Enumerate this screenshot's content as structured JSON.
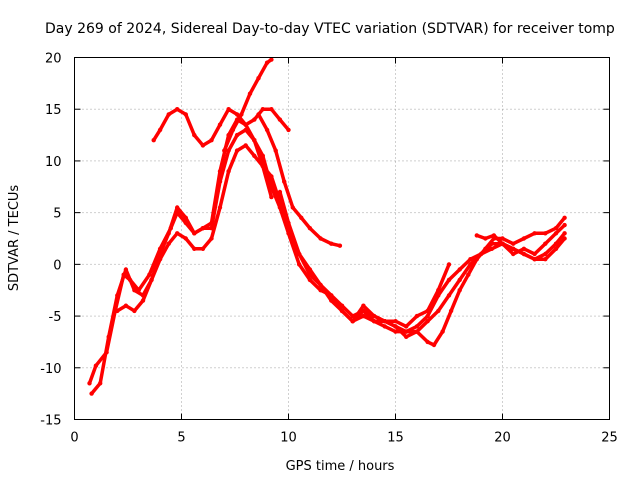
{
  "chart_data": {
    "type": "scatter",
    "title": "Day 269 of 2024, Sidereal Day-to-day VTEC variation (SDTVAR) for receiver tomp",
    "xlabel": "GPS time / hours",
    "ylabel": "SDTVAR / TECUs",
    "xlim": [
      0,
      25
    ],
    "ylim": [
      -15,
      20
    ],
    "xticks": [
      "0",
      "5",
      "10",
      "15",
      "20",
      "25"
    ],
    "yticks": [
      "-15",
      "-10",
      "-5",
      "0",
      "5",
      "10",
      "15",
      "20"
    ],
    "grid": true,
    "legend": "none",
    "color": "#ff0000",
    "series": [
      {
        "points": [
          [
            0.7,
            -11.5
          ],
          [
            1.0,
            -9.8
          ],
          [
            1.5,
            -8.5
          ],
          [
            1.9,
            -4.5
          ],
          [
            2.3,
            -1.0
          ],
          [
            2.6,
            -1.5
          ],
          [
            3.0,
            -2.5
          ],
          [
            3.5,
            -1.0
          ],
          [
            4.0,
            1.5
          ],
          [
            4.5,
            3.5
          ],
          [
            4.8,
            5.0
          ],
          [
            5.2,
            4.0
          ],
          [
            5.6,
            3.0
          ],
          [
            6.0,
            3.5
          ],
          [
            6.4,
            3.5
          ],
          [
            6.8,
            8.0
          ],
          [
            7.2,
            11.0
          ],
          [
            7.6,
            12.5
          ],
          [
            8.0,
            13.0
          ],
          [
            8.4,
            12.0
          ],
          [
            8.8,
            10.5
          ],
          [
            9.2,
            7.5
          ],
          [
            9.6,
            5.5
          ],
          [
            10.0,
            3.0
          ],
          [
            10.5,
            0.0
          ],
          [
            11.0,
            -1.5
          ],
          [
            11.5,
            -2.5
          ],
          [
            12.0,
            -3.0
          ],
          [
            12.5,
            -4.5
          ],
          [
            13.0,
            -5.5
          ],
          [
            13.5,
            -5.0
          ],
          [
            14.0,
            -5.5
          ],
          [
            14.5,
            -5.5
          ],
          [
            15.0,
            -6.0
          ],
          [
            15.5,
            -6.5
          ],
          [
            16.0,
            -6.0
          ],
          [
            16.5,
            -5.0
          ],
          [
            17.0,
            -3.0
          ],
          [
            17.5,
            -1.5
          ],
          [
            18.0,
            -0.5
          ],
          [
            18.5,
            0.5
          ],
          [
            19.0,
            1.0
          ],
          [
            19.5,
            2.0
          ],
          [
            20.0,
            2.0
          ],
          [
            20.5,
            1.5
          ],
          [
            21.0,
            1.0
          ],
          [
            21.5,
            0.5
          ],
          [
            22.0,
            1.0
          ],
          [
            22.5,
            2.0
          ],
          [
            22.9,
            3.0
          ]
        ]
      },
      {
        "points": [
          [
            0.8,
            -12.5
          ],
          [
            1.2,
            -11.5
          ],
          [
            1.6,
            -7.0
          ],
          [
            2.0,
            -3.0
          ],
          [
            2.4,
            -0.5
          ],
          [
            2.8,
            -2.5
          ],
          [
            3.2,
            -3.0
          ],
          [
            3.6,
            -1.5
          ],
          [
            4.0,
            0.5
          ],
          [
            4.4,
            2.0
          ],
          [
            4.8,
            3.0
          ],
          [
            5.2,
            2.5
          ],
          [
            5.6,
            1.5
          ],
          [
            6.0,
            1.5
          ],
          [
            6.4,
            2.5
          ],
          [
            6.8,
            5.5
          ],
          [
            7.2,
            9.0
          ],
          [
            7.6,
            11.0
          ],
          [
            8.0,
            11.5
          ],
          [
            8.4,
            10.5
          ],
          [
            8.8,
            9.5
          ],
          [
            9.2,
            8.5
          ],
          [
            9.6,
            6.0
          ],
          [
            10.0,
            3.5
          ],
          [
            10.5,
            1.0
          ],
          [
            11.0,
            -0.5
          ],
          [
            11.5,
            -2.0
          ],
          [
            12.0,
            -3.0
          ],
          [
            12.5,
            -4.0
          ],
          [
            13.0,
            -5.0
          ],
          [
            13.5,
            -4.5
          ],
          [
            14.0,
            -5.0
          ],
          [
            14.5,
            -5.5
          ],
          [
            15.0,
            -6.0
          ],
          [
            15.5,
            -7.0
          ],
          [
            16.0,
            -6.5
          ],
          [
            16.5,
            -5.5
          ],
          [
            17.0,
            -4.5
          ],
          [
            17.5,
            -3.0
          ],
          [
            18.0,
            -1.5
          ],
          [
            18.5,
            0.0
          ],
          [
            19.0,
            1.0
          ],
          [
            19.5,
            1.5
          ],
          [
            20.0,
            2.0
          ],
          [
            20.5,
            1.5
          ],
          [
            21.0,
            1.0
          ],
          [
            21.5,
            0.5
          ],
          [
            22.0,
            0.5
          ],
          [
            22.5,
            1.5
          ],
          [
            22.9,
            2.5
          ]
        ]
      },
      {
        "points": [
          [
            2.0,
            -4.5
          ],
          [
            2.4,
            -4.0
          ],
          [
            2.8,
            -4.5
          ],
          [
            3.2,
            -3.5
          ],
          [
            3.6,
            -1.5
          ],
          [
            4.0,
            1.0
          ],
          [
            4.4,
            3.0
          ],
          [
            4.8,
            5.5
          ],
          [
            5.2,
            4.5
          ],
          [
            5.6,
            3.0
          ],
          [
            6.0,
            3.5
          ],
          [
            6.4,
            4.0
          ],
          [
            6.8,
            9.0
          ],
          [
            7.2,
            12.5
          ],
          [
            7.6,
            14.0
          ],
          [
            8.0,
            13.5
          ],
          [
            8.4,
            12.0
          ],
          [
            8.8,
            9.5
          ],
          [
            9.2,
            6.5
          ]
        ]
      },
      {
        "points": [
          [
            3.7,
            12.0
          ],
          [
            4.0,
            13.0
          ],
          [
            4.4,
            14.5
          ],
          [
            4.8,
            15.0
          ],
          [
            5.2,
            14.5
          ],
          [
            5.6,
            12.5
          ],
          [
            6.0,
            11.5
          ],
          [
            6.4,
            12.0
          ],
          [
            6.8,
            13.5
          ],
          [
            7.2,
            15.0
          ],
          [
            7.6,
            14.5
          ],
          [
            8.0,
            13.5
          ],
          [
            8.4,
            14.0
          ],
          [
            8.8,
            15.0
          ],
          [
            9.2,
            15.0
          ],
          [
            9.6,
            14.0
          ],
          [
            10.0,
            13.0
          ]
        ]
      },
      {
        "points": [
          [
            7.0,
            11.0
          ],
          [
            7.4,
            13.0
          ],
          [
            7.8,
            14.5
          ],
          [
            8.2,
            16.5
          ],
          [
            8.6,
            18.0
          ],
          [
            9.0,
            19.5
          ],
          [
            9.2,
            19.8
          ]
        ]
      },
      {
        "points": [
          [
            8.6,
            14.5
          ],
          [
            9.0,
            13.0
          ],
          [
            9.4,
            11.0
          ],
          [
            9.8,
            8.0
          ],
          [
            10.2,
            5.5
          ],
          [
            10.6,
            4.5
          ],
          [
            11.0,
            3.5
          ],
          [
            11.5,
            2.5
          ],
          [
            12.0,
            2.0
          ],
          [
            12.4,
            1.8
          ]
        ]
      },
      {
        "points": [
          [
            9.6,
            7.0
          ],
          [
            10.0,
            4.0
          ],
          [
            10.5,
            1.0
          ],
          [
            11.0,
            -1.0
          ],
          [
            11.5,
            -2.0
          ],
          [
            12.0,
            -3.5
          ],
          [
            12.5,
            -4.5
          ],
          [
            13.0,
            -5.5
          ],
          [
            13.5,
            -4.0
          ],
          [
            14.0,
            -5.0
          ],
          [
            14.5,
            -5.5
          ],
          [
            15.0,
            -5.5
          ],
          [
            15.5,
            -6.0
          ],
          [
            16.0,
            -5.0
          ],
          [
            16.5,
            -4.5
          ],
          [
            17.0,
            -2.5
          ],
          [
            17.5,
            0.0
          ]
        ]
      },
      {
        "points": [
          [
            13.0,
            -5.5
          ],
          [
            13.5,
            -4.5
          ],
          [
            14.0,
            -5.5
          ],
          [
            14.5,
            -6.0
          ],
          [
            15.0,
            -6.5
          ],
          [
            15.5,
            -6.5
          ],
          [
            16.0,
            -6.5
          ],
          [
            16.5,
            -7.5
          ],
          [
            16.8,
            -7.8
          ],
          [
            17.2,
            -6.5
          ],
          [
            17.6,
            -4.5
          ],
          [
            18.0,
            -2.5
          ],
          [
            18.4,
            -1.0
          ],
          [
            18.8,
            0.5
          ],
          [
            19.2,
            1.5
          ],
          [
            19.6,
            2.5
          ],
          [
            20.0,
            2.5
          ],
          [
            20.5,
            2.0
          ],
          [
            21.0,
            2.5
          ],
          [
            21.5,
            3.0
          ],
          [
            22.0,
            3.0
          ],
          [
            22.5,
            3.5
          ],
          [
            22.9,
            4.5
          ]
        ]
      },
      {
        "points": [
          [
            18.8,
            2.8
          ],
          [
            19.2,
            2.5
          ],
          [
            19.6,
            2.8
          ],
          [
            20.0,
            2.0
          ],
          [
            20.5,
            1.0
          ],
          [
            21.0,
            1.5
          ],
          [
            21.5,
            1.0
          ],
          [
            22.0,
            2.0
          ],
          [
            22.5,
            3.0
          ],
          [
            22.9,
            3.8
          ]
        ]
      }
    ]
  }
}
